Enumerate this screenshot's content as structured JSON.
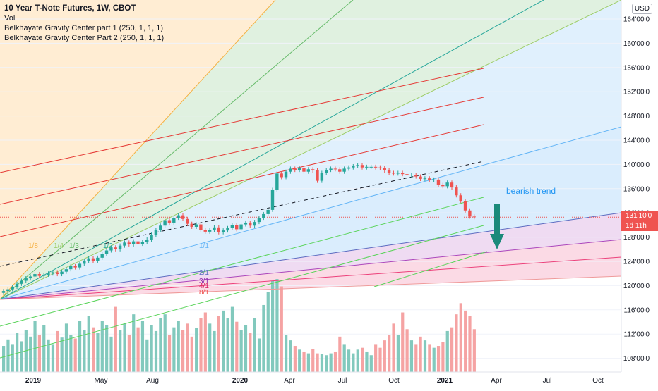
{
  "legend": {
    "title": "10 Year T-Note Futures, 1W, CBOT",
    "line2": "Vol",
    "line3": "Belkhayate Gravity Center part 1 (250, 1, 1, 1)",
    "line4": "Belkhayate Gravity Center Part 2 (250, 1, 1, 1)"
  },
  "currency": "USD",
  "price_tag": {
    "price": "131'10'0",
    "countdown": "1d 11h"
  },
  "annotation": "bearish trend",
  "fan_labels": [
    "1/8",
    "1/4",
    "1/3",
    "1/2",
    "1/1",
    "2/1",
    "3/1",
    "4/1",
    "8/1"
  ],
  "colors": {
    "up": "#26a69a",
    "down": "#ef5350",
    "vol_up": "#82c9bd",
    "vol_down": "#f5a3a3",
    "channel": "#e53935",
    "trend_green": "#4caf50",
    "arrow": "#1a8a7a"
  },
  "chart_data": {
    "type": "candlestick",
    "title": "10 Year T-Note Futures, 1W, CBOT",
    "ylim": [
      106,
      166
    ],
    "y_ticks": [
      "108'00'0",
      "112'00'0",
      "116'00'0",
      "120'00'0",
      "124'00'0",
      "128'00'0",
      "132'00'0",
      "136'00'0",
      "140'00'0",
      "144'00'0",
      "148'00'0",
      "152'00'0",
      "156'00'0",
      "160'00'0",
      "164'00'0"
    ],
    "x_ticks": [
      "2019",
      "May",
      "Aug",
      "2020",
      "Apr",
      "Jul",
      "Oct",
      "2021",
      "Apr",
      "Jul",
      "Oct"
    ],
    "close": [
      119.1,
      119.4,
      119.8,
      120.3,
      120.8,
      121.2,
      121.5,
      121.9,
      121.6,
      121.8,
      122.0,
      122.2,
      121.9,
      122.3,
      122.7,
      123.2,
      123.0,
      123.6,
      124.0,
      124.5,
      124.1,
      124.6,
      125.2,
      125.8,
      126.3,
      126.0,
      126.6,
      127.1,
      126.8,
      127.3,
      126.9,
      127.2,
      127.6,
      128.4,
      129.2,
      129.9,
      130.8,
      130.4,
      131.2,
      131.6,
      131.0,
      130.2,
      129.7,
      130.1,
      129.2,
      128.9,
      129.2,
      129.6,
      128.8,
      129.1,
      129.5,
      130.0,
      129.3,
      130.1,
      130.4,
      129.9,
      130.5,
      131.2,
      131.8,
      132.5,
      135.8,
      138.5,
      137.9,
      138.8,
      139.3,
      139.1,
      139.4,
      138.8,
      139.2,
      139.0,
      137.3,
      138.6,
      139.1,
      139.3,
      139.2,
      138.8,
      139.3,
      139.5,
      139.7,
      139.9,
      139.5,
      139.6,
      139.6,
      139.5,
      139.4,
      139.0,
      138.6,
      138.5,
      138.6,
      138.4,
      138.2,
      138.3,
      138.0,
      137.6,
      137.7,
      137.4,
      137.5,
      136.6,
      136.4,
      137.0,
      136.2,
      134.9,
      134.0,
      132.4,
      131.4,
      131.3
    ],
    "volume": [
      0.28,
      0.35,
      0.3,
      0.42,
      0.33,
      0.45,
      0.38,
      0.55,
      0.4,
      0.5,
      0.35,
      0.3,
      0.44,
      0.37,
      0.52,
      0.4,
      0.36,
      0.55,
      0.45,
      0.6,
      0.48,
      0.42,
      0.55,
      0.5,
      0.38,
      0.7,
      0.45,
      0.52,
      0.4,
      0.62,
      0.48,
      0.55,
      0.35,
      0.5,
      0.44,
      0.58,
      0.62,
      0.4,
      0.48,
      0.55,
      0.45,
      0.52,
      0.38,
      0.47,
      0.58,
      0.64,
      0.52,
      0.44,
      0.6,
      0.66,
      0.58,
      0.7,
      0.54,
      0.45,
      0.5,
      0.42,
      0.58,
      0.36,
      0.72,
      0.86,
      0.98,
      1.0,
      0.92,
      0.4,
      0.34,
      0.28,
      0.24,
      0.22,
      0.2,
      0.25,
      0.2,
      0.19,
      0.18,
      0.2,
      0.22,
      0.38,
      0.3,
      0.24,
      0.2,
      0.24,
      0.26,
      0.22,
      0.18,
      0.3,
      0.26,
      0.34,
      0.4,
      0.52,
      0.4,
      0.64,
      0.46,
      0.34,
      0.3,
      0.38,
      0.34,
      0.3,
      0.26,
      0.28,
      0.32,
      0.44,
      0.48,
      0.62,
      0.74,
      0.66,
      0.6,
      0.46
    ],
    "series": [
      {
        "name": "Belkhayate Gravity Center part 1 (250, 1, 1, 1)"
      },
      {
        "name": "Belkhayate Gravity Center Part 2 (250, 1, 1, 1)"
      }
    ]
  }
}
